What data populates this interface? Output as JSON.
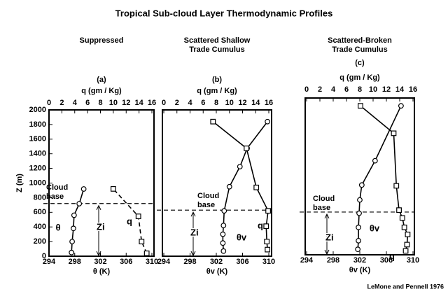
{
  "title": "Tropical Sub-cloud Layer Thermodynamic Profiles",
  "credit": "LeMone and Pennell 1976",
  "chart_data": [
    {
      "type": "profile",
      "title": [
        "Suppressed"
      ],
      "label": "(a)",
      "x_label": "θ (K)",
      "x2_label": "q (gm / Kg)",
      "y_label": "Z (m)",
      "xlim": [
        294,
        310
      ],
      "xticks": [
        294,
        298,
        302,
        306,
        310
      ],
      "x2lim": [
        0,
        16
      ],
      "x2ticks": [
        0,
        2,
        4,
        6,
        8,
        10,
        12,
        14,
        16
      ],
      "ylim": [
        0,
        2000
      ],
      "yticks": [
        0,
        200,
        400,
        600,
        800,
        1000,
        1200,
        1400,
        1600,
        1800,
        2000
      ],
      "cloud_base": 720,
      "cloud_base_label": [
        "Cloud",
        "base"
      ],
      "zi_label": "Zi",
      "series": [
        {
          "name": "θ",
          "marker": "circle",
          "color": "#000000",
          "line_style": "solid",
          "z": [
            50,
            200,
            380,
            560,
            718,
            919
          ],
          "values": [
            297.5,
            297.6,
            297.8,
            297.9,
            298.7,
            299.4
          ]
        },
        {
          "name": "q",
          "marker": "square",
          "axis": "x2",
          "color": "#000000",
          "line_style": "dashed",
          "z": [
            40,
            200,
            545,
            920
          ],
          "values": [
            15.2,
            14.4,
            13.9,
            10.0
          ]
        }
      ]
    },
    {
      "type": "profile",
      "title": [
        "Scattered Shallow",
        "Trade Cumulus"
      ],
      "label": "(b)",
      "x_label": "θv (K)",
      "x2_label": "q (gm / Kg)",
      "xlim": [
        294,
        310
      ],
      "xticks": [
        294,
        298,
        302,
        306,
        310
      ],
      "x2lim": [
        0,
        16
      ],
      "x2ticks": [
        0,
        2,
        4,
        6,
        8,
        10,
        12,
        14,
        16
      ],
      "ylim": [
        0,
        2000
      ],
      "cloud_base": 630,
      "cloud_base_label": [
        "Cloud",
        "base"
      ],
      "zi_label": "Zi",
      "series": [
        {
          "name": "θv",
          "marker": "circle",
          "color": "#000000",
          "line_style": "solid",
          "z": [
            70,
            180,
            300,
            420,
            620,
            950,
            1225,
            1475,
            1840
          ],
          "values": [
            303.1,
            303.0,
            303.0,
            303.1,
            303.2,
            304.0,
            305.6,
            306.7,
            309.8
          ]
        },
        {
          "name": "q",
          "marker": "square",
          "axis": "x2",
          "color": "#000000",
          "line_style": "solid",
          "z": [
            90,
            200,
            410,
            620,
            940,
            1475,
            1840
          ],
          "values": [
            15.8,
            15.7,
            15.6,
            15.9,
            14.1,
            12.6,
            7.5
          ]
        }
      ]
    },
    {
      "type": "profile",
      "title": [
        "Scattered-Broken",
        "Trade Cumulus"
      ],
      "label": "(c)",
      "x_label": "θv (K)",
      "x2_label": "q (gm / Kg)",
      "xlim": [
        294,
        310
      ],
      "xticks": [
        294,
        298,
        302,
        306,
        310
      ],
      "x2lim": [
        0,
        16
      ],
      "x2ticks": [
        0,
        2,
        4,
        6,
        8,
        10,
        12,
        14,
        16
      ],
      "ylim": [
        0,
        2000
      ],
      "cloud_base": 545,
      "cloud_base_label": [
        "Cloud",
        "base"
      ],
      "zi_label": "Zi",
      "series": [
        {
          "name": "θv",
          "marker": "circle",
          "color": "#000000",
          "line_style": "solid",
          "z": [
            70,
            180,
            350,
            530,
            700,
            890,
            1200,
            1900
          ],
          "values": [
            301.7,
            301.8,
            301.8,
            301.9,
            302.0,
            302.3,
            304.3,
            308.2
          ]
        },
        {
          "name": "q",
          "marker": "square",
          "axis": "x2",
          "color": "#000000",
          "line_style": "solid",
          "z": [
            50,
            130,
            260,
            350,
            470,
            570,
            880,
            1550,
            1900
          ],
          "values": [
            14.9,
            15.1,
            15.2,
            14.7,
            14.4,
            13.9,
            13.5,
            13.1,
            8.1
          ]
        }
      ]
    }
  ]
}
